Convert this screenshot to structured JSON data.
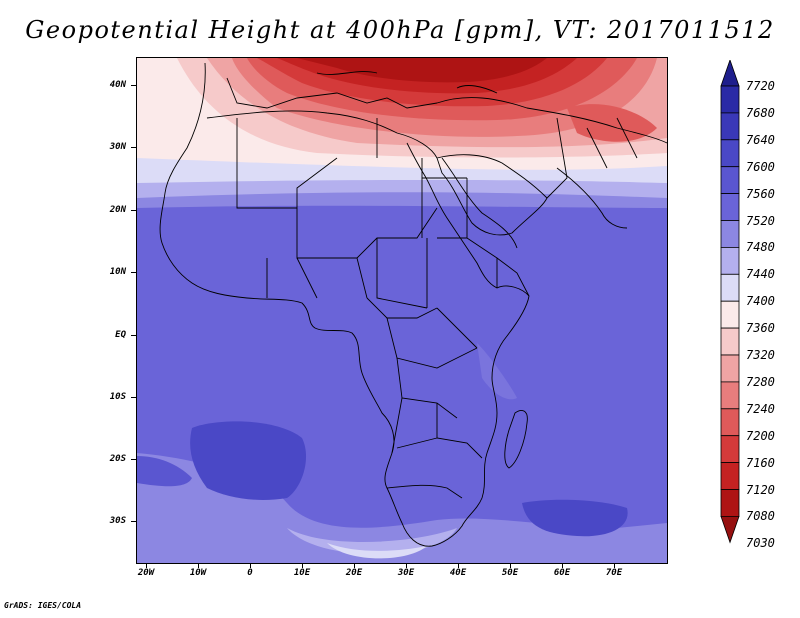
{
  "title": "Geopotential Height at 400hPa [gpm], VT: 2017011512",
  "map": {
    "lat_labels": [
      "40N",
      "30N",
      "20N",
      "10N",
      "EQ",
      "10S",
      "20S",
      "30S"
    ],
    "lon_labels": [
      "20W",
      "10W",
      "0",
      "10E",
      "20E",
      "30E",
      "40E",
      "50E",
      "60E",
      "70E"
    ],
    "lat_range": [
      -36,
      45
    ],
    "lon_range": [
      -22,
      80
    ]
  },
  "legend": {
    "labels": [
      "7720",
      "7680",
      "7640",
      "7600",
      "7560",
      "7520",
      "7480",
      "7440",
      "7400",
      "7360",
      "7320",
      "7280",
      "7240",
      "7200",
      "7160",
      "7120",
      "7080",
      "7030"
    ],
    "colors": [
      "#1e1e8c",
      "#2a2aa6",
      "#3a38b8",
      "#4a48c6",
      "#5a56d0",
      "#6a64d8",
      "#8c87e2",
      "#b4b0ee",
      "#dcdcf7",
      "#fbeaea",
      "#f6caca",
      "#efa4a4",
      "#e87d7d",
      "#df5a5a",
      "#d43a3a",
      "#c42222",
      "#ae1414",
      "#961010"
    ]
  },
  "footer": "GrADS: IGES/COLA"
}
